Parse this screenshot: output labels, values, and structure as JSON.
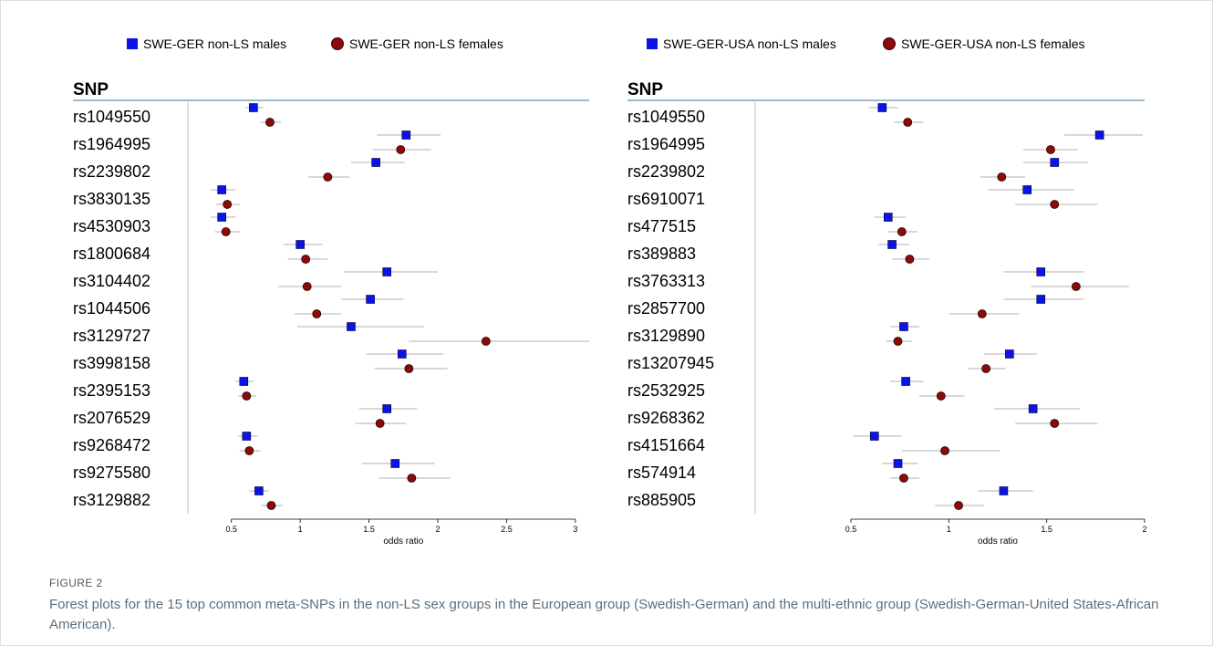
{
  "figure_label": "FIGURE 2",
  "caption": "Forest plots for the 15 top common meta-SNPs in the non-LS sex groups in the European group (Swedish-German) and the multi-ethnic group (Swedish-German-United States-African American).",
  "colors": {
    "male": "#0a14e6",
    "female": "#8b0a0a",
    "header_rule": "#5b8fb0",
    "ci_line": "#c0c0c0",
    "divider": "#c8c8c8",
    "text": "#000000"
  },
  "chart_data": [
    {
      "type": "forest",
      "snp_header": "SNP",
      "xlabel": "odds ratio",
      "xlim": [
        0.25,
        3.1
      ],
      "xticks": [
        0.5,
        1,
        1.5,
        2,
        2.5,
        3
      ],
      "xtick_labels": [
        "0.5",
        "1",
        "1.5",
        "2",
        "2.5",
        "3"
      ],
      "legend": [
        "SWE-GER non-LS males",
        "SWE-GER non-LS females"
      ],
      "rows": [
        {
          "snp": "rs1049550",
          "male": [
            0.66,
            0.6,
            0.73
          ],
          "female": [
            0.78,
            0.71,
            0.86
          ]
        },
        {
          "snp": "rs1964995",
          "male": [
            1.77,
            1.56,
            2.02
          ],
          "female": [
            1.73,
            1.53,
            1.95
          ]
        },
        {
          "snp": "rs2239802",
          "male": [
            1.55,
            1.37,
            1.76
          ],
          "female": [
            1.2,
            1.06,
            1.36
          ]
        },
        {
          "snp": "rs3830135",
          "male": [
            0.43,
            0.35,
            0.53
          ],
          "female": [
            0.47,
            0.39,
            0.56
          ]
        },
        {
          "snp": "rs4530903",
          "male": [
            0.43,
            0.35,
            0.53
          ],
          "female": [
            0.46,
            0.38,
            0.56
          ]
        },
        {
          "snp": "rs1800684",
          "male": [
            1.0,
            0.88,
            1.16
          ],
          "female": [
            1.04,
            0.91,
            1.2
          ]
        },
        {
          "snp": "rs3104402",
          "male": [
            1.63,
            1.32,
            2.0
          ],
          "female": [
            1.05,
            0.84,
            1.3
          ]
        },
        {
          "snp": "rs1044506",
          "male": [
            1.51,
            1.3,
            1.75
          ],
          "female": [
            1.12,
            0.96,
            1.3
          ]
        },
        {
          "snp": "rs3129727",
          "male": [
            1.37,
            0.98,
            1.9
          ],
          "female": [
            2.35,
            1.79,
            3.1
          ]
        },
        {
          "snp": "rs3998158",
          "male": [
            1.74,
            1.48,
            2.04
          ],
          "female": [
            1.79,
            1.54,
            2.07
          ]
        },
        {
          "snp": "rs2395153",
          "male": [
            0.59,
            0.53,
            0.66
          ],
          "female": [
            0.61,
            0.55,
            0.68
          ]
        },
        {
          "snp": "rs2076529",
          "male": [
            1.63,
            1.43,
            1.85
          ],
          "female": [
            1.58,
            1.4,
            1.77
          ]
        },
        {
          "snp": "rs9268472",
          "male": [
            0.61,
            0.55,
            0.69
          ],
          "female": [
            0.63,
            0.56,
            0.71
          ]
        },
        {
          "snp": "rs9275580",
          "male": [
            1.69,
            1.45,
            1.98
          ],
          "female": [
            1.81,
            1.57,
            2.09
          ]
        },
        {
          "snp": "rs3129882",
          "male": [
            0.7,
            0.63,
            0.77
          ],
          "female": [
            0.79,
            0.72,
            0.87
          ]
        }
      ]
    },
    {
      "type": "forest",
      "snp_header": "SNP",
      "xlabel": "odds ratio",
      "xlim": [
        0.5,
        2.0
      ],
      "xticks": [
        0.5,
        1,
        1.5,
        2
      ],
      "xtick_labels": [
        "0.5",
        "1",
        "1.5",
        "2"
      ],
      "legend": [
        "SWE-GER-USA non-LS males",
        "SWE-GER-USA non-LS females"
      ],
      "rows": [
        {
          "snp": "rs1049550",
          "male": [
            0.66,
            0.59,
            0.74
          ],
          "female": [
            0.79,
            0.72,
            0.87
          ]
        },
        {
          "snp": "rs1964995",
          "male": [
            1.77,
            1.59,
            1.99
          ],
          "female": [
            1.52,
            1.38,
            1.66
          ]
        },
        {
          "snp": "rs2239802",
          "male": [
            1.54,
            1.38,
            1.71
          ],
          "female": [
            1.27,
            1.16,
            1.39
          ]
        },
        {
          "snp": "rs6910071",
          "male": [
            1.4,
            1.2,
            1.64
          ],
          "female": [
            1.54,
            1.34,
            1.76
          ]
        },
        {
          "snp": "rs477515",
          "male": [
            0.69,
            0.62,
            0.78
          ],
          "female": [
            0.76,
            0.69,
            0.84
          ]
        },
        {
          "snp": "rs389883",
          "male": [
            0.71,
            0.64,
            0.8
          ],
          "female": [
            0.8,
            0.71,
            0.9
          ]
        },
        {
          "snp": "rs3763313",
          "male": [
            1.47,
            1.28,
            1.69
          ],
          "female": [
            1.65,
            1.42,
            1.92
          ]
        },
        {
          "snp": "rs2857700",
          "male": [
            1.47,
            1.28,
            1.69
          ],
          "female": [
            1.17,
            1.0,
            1.36
          ]
        },
        {
          "snp": "rs3129890",
          "male": [
            0.77,
            0.7,
            0.85
          ],
          "female": [
            0.74,
            0.68,
            0.81
          ]
        },
        {
          "snp": "rs13207945",
          "male": [
            1.31,
            1.18,
            1.45
          ],
          "female": [
            1.19,
            1.1,
            1.29
          ]
        },
        {
          "snp": "rs2532925",
          "male": [
            0.78,
            0.7,
            0.87
          ],
          "female": [
            0.96,
            0.85,
            1.08
          ]
        },
        {
          "snp": "rs9268362",
          "male": [
            1.43,
            1.23,
            1.67
          ],
          "female": [
            1.54,
            1.34,
            1.76
          ]
        },
        {
          "snp": "rs4151664",
          "male": [
            0.62,
            0.51,
            0.76
          ],
          "female": [
            0.98,
            0.76,
            1.26
          ]
        },
        {
          "snp": "rs574914",
          "male": [
            0.74,
            0.66,
            0.84
          ],
          "female": [
            0.77,
            0.7,
            0.85
          ]
        },
        {
          "snp": "rs885905",
          "male": [
            1.28,
            1.15,
            1.43
          ],
          "female": [
            1.05,
            0.93,
            1.18
          ]
        }
      ]
    }
  ]
}
